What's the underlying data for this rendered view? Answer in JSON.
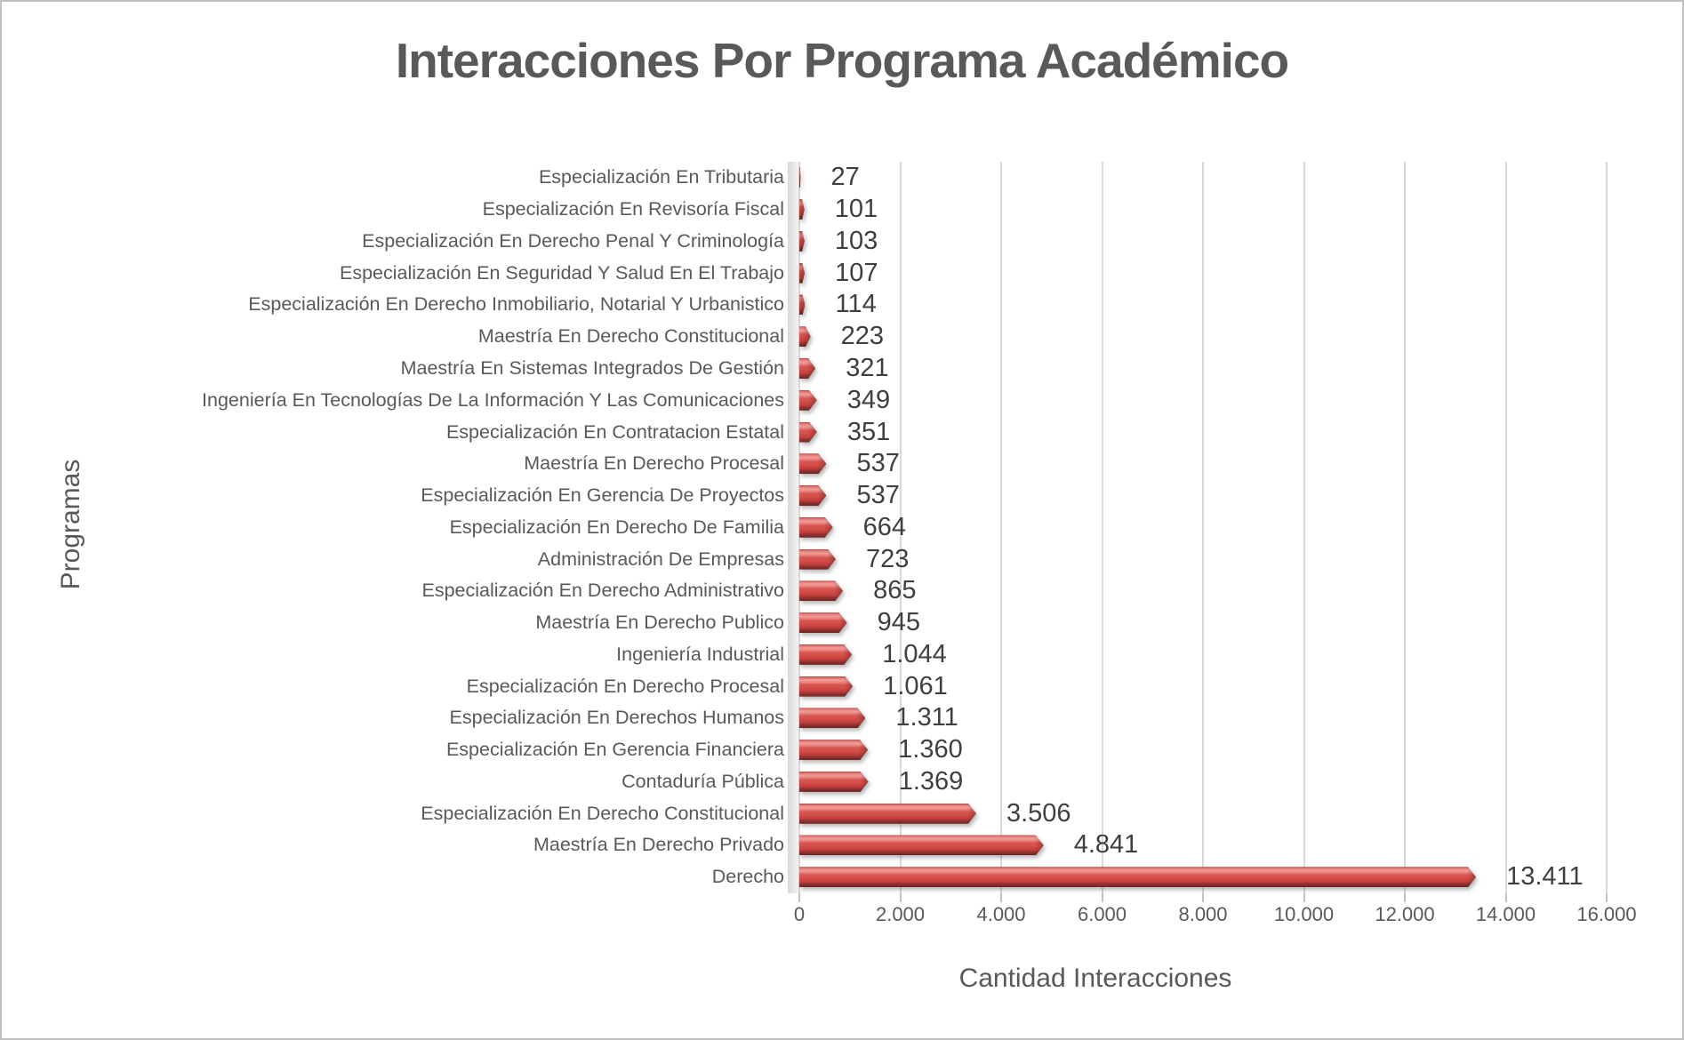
{
  "title": "Interacciones Por Programa Académico",
  "axes": {
    "x_title": "Cantidad Interacciones",
    "y_title": "Programas"
  },
  "colors": {
    "bar_main": "#D6534E",
    "bar_highlight": "#F09B97",
    "bar_dark": "#7B2927",
    "text": "#595959",
    "value_text": "#3F3F3F",
    "gridline": "#D8D8D8",
    "border": "#BFBFBF"
  },
  "chart_data": {
    "type": "bar",
    "orientation": "horizontal",
    "title": "Interacciones Por Programa Académico",
    "xlabel": "Cantidad Interacciones",
    "ylabel": "Programas",
    "xlim": [
      0,
      16000
    ],
    "x_ticks": [
      "0",
      "2.000",
      "4.000",
      "6.000",
      "8.000",
      "10.000",
      "12.000",
      "14.000",
      "16.000"
    ],
    "x_tick_values": [
      0,
      2000,
      4000,
      6000,
      8000,
      10000,
      12000,
      14000,
      16000
    ],
    "grid": true,
    "legend": false,
    "categories": [
      "Especialización En Tributaria",
      "Especialización En Revisoría Fiscal",
      "Especialización En Derecho Penal Y Criminología",
      "Especialización En Seguridad Y Salud En El Trabajo",
      "Especialización En Derecho Inmobiliario, Notarial Y Urbanistico",
      "Maestría En Derecho Constitucional",
      "Maestría En Sistemas Integrados De Gestión",
      "Ingeniería En Tecnologías De La Información Y Las Comunicaciones",
      "Especialización En Contratacion Estatal",
      "Maestría En Derecho Procesal",
      "Especialización En Gerencia De Proyectos",
      "Especialización En Derecho De Familia",
      "Administración De Empresas",
      "Especialización En Derecho Administrativo",
      "Maestría En Derecho Publico",
      "Ingeniería Industrial",
      "Especialización En Derecho Procesal",
      "Especialización En Derechos Humanos",
      "Especialización En Gerencia Financiera",
      "Contaduría Pública",
      "Especialización En Derecho Constitucional",
      "Maestría En Derecho Privado",
      "Derecho"
    ],
    "values": [
      27,
      101,
      103,
      107,
      114,
      223,
      321,
      349,
      351,
      537,
      537,
      664,
      723,
      865,
      945,
      1044,
      1061,
      1311,
      1360,
      1369,
      3506,
      4841,
      13411
    ],
    "value_labels": [
      "27",
      "101",
      "103",
      "107",
      "114",
      "223",
      "321",
      "349",
      "351",
      "537",
      "537",
      "664",
      "723",
      "865",
      "945",
      "1.044",
      "1.061",
      "1.311",
      "1.360",
      "1.369",
      "3.506",
      "4.841",
      "13.411"
    ]
  }
}
